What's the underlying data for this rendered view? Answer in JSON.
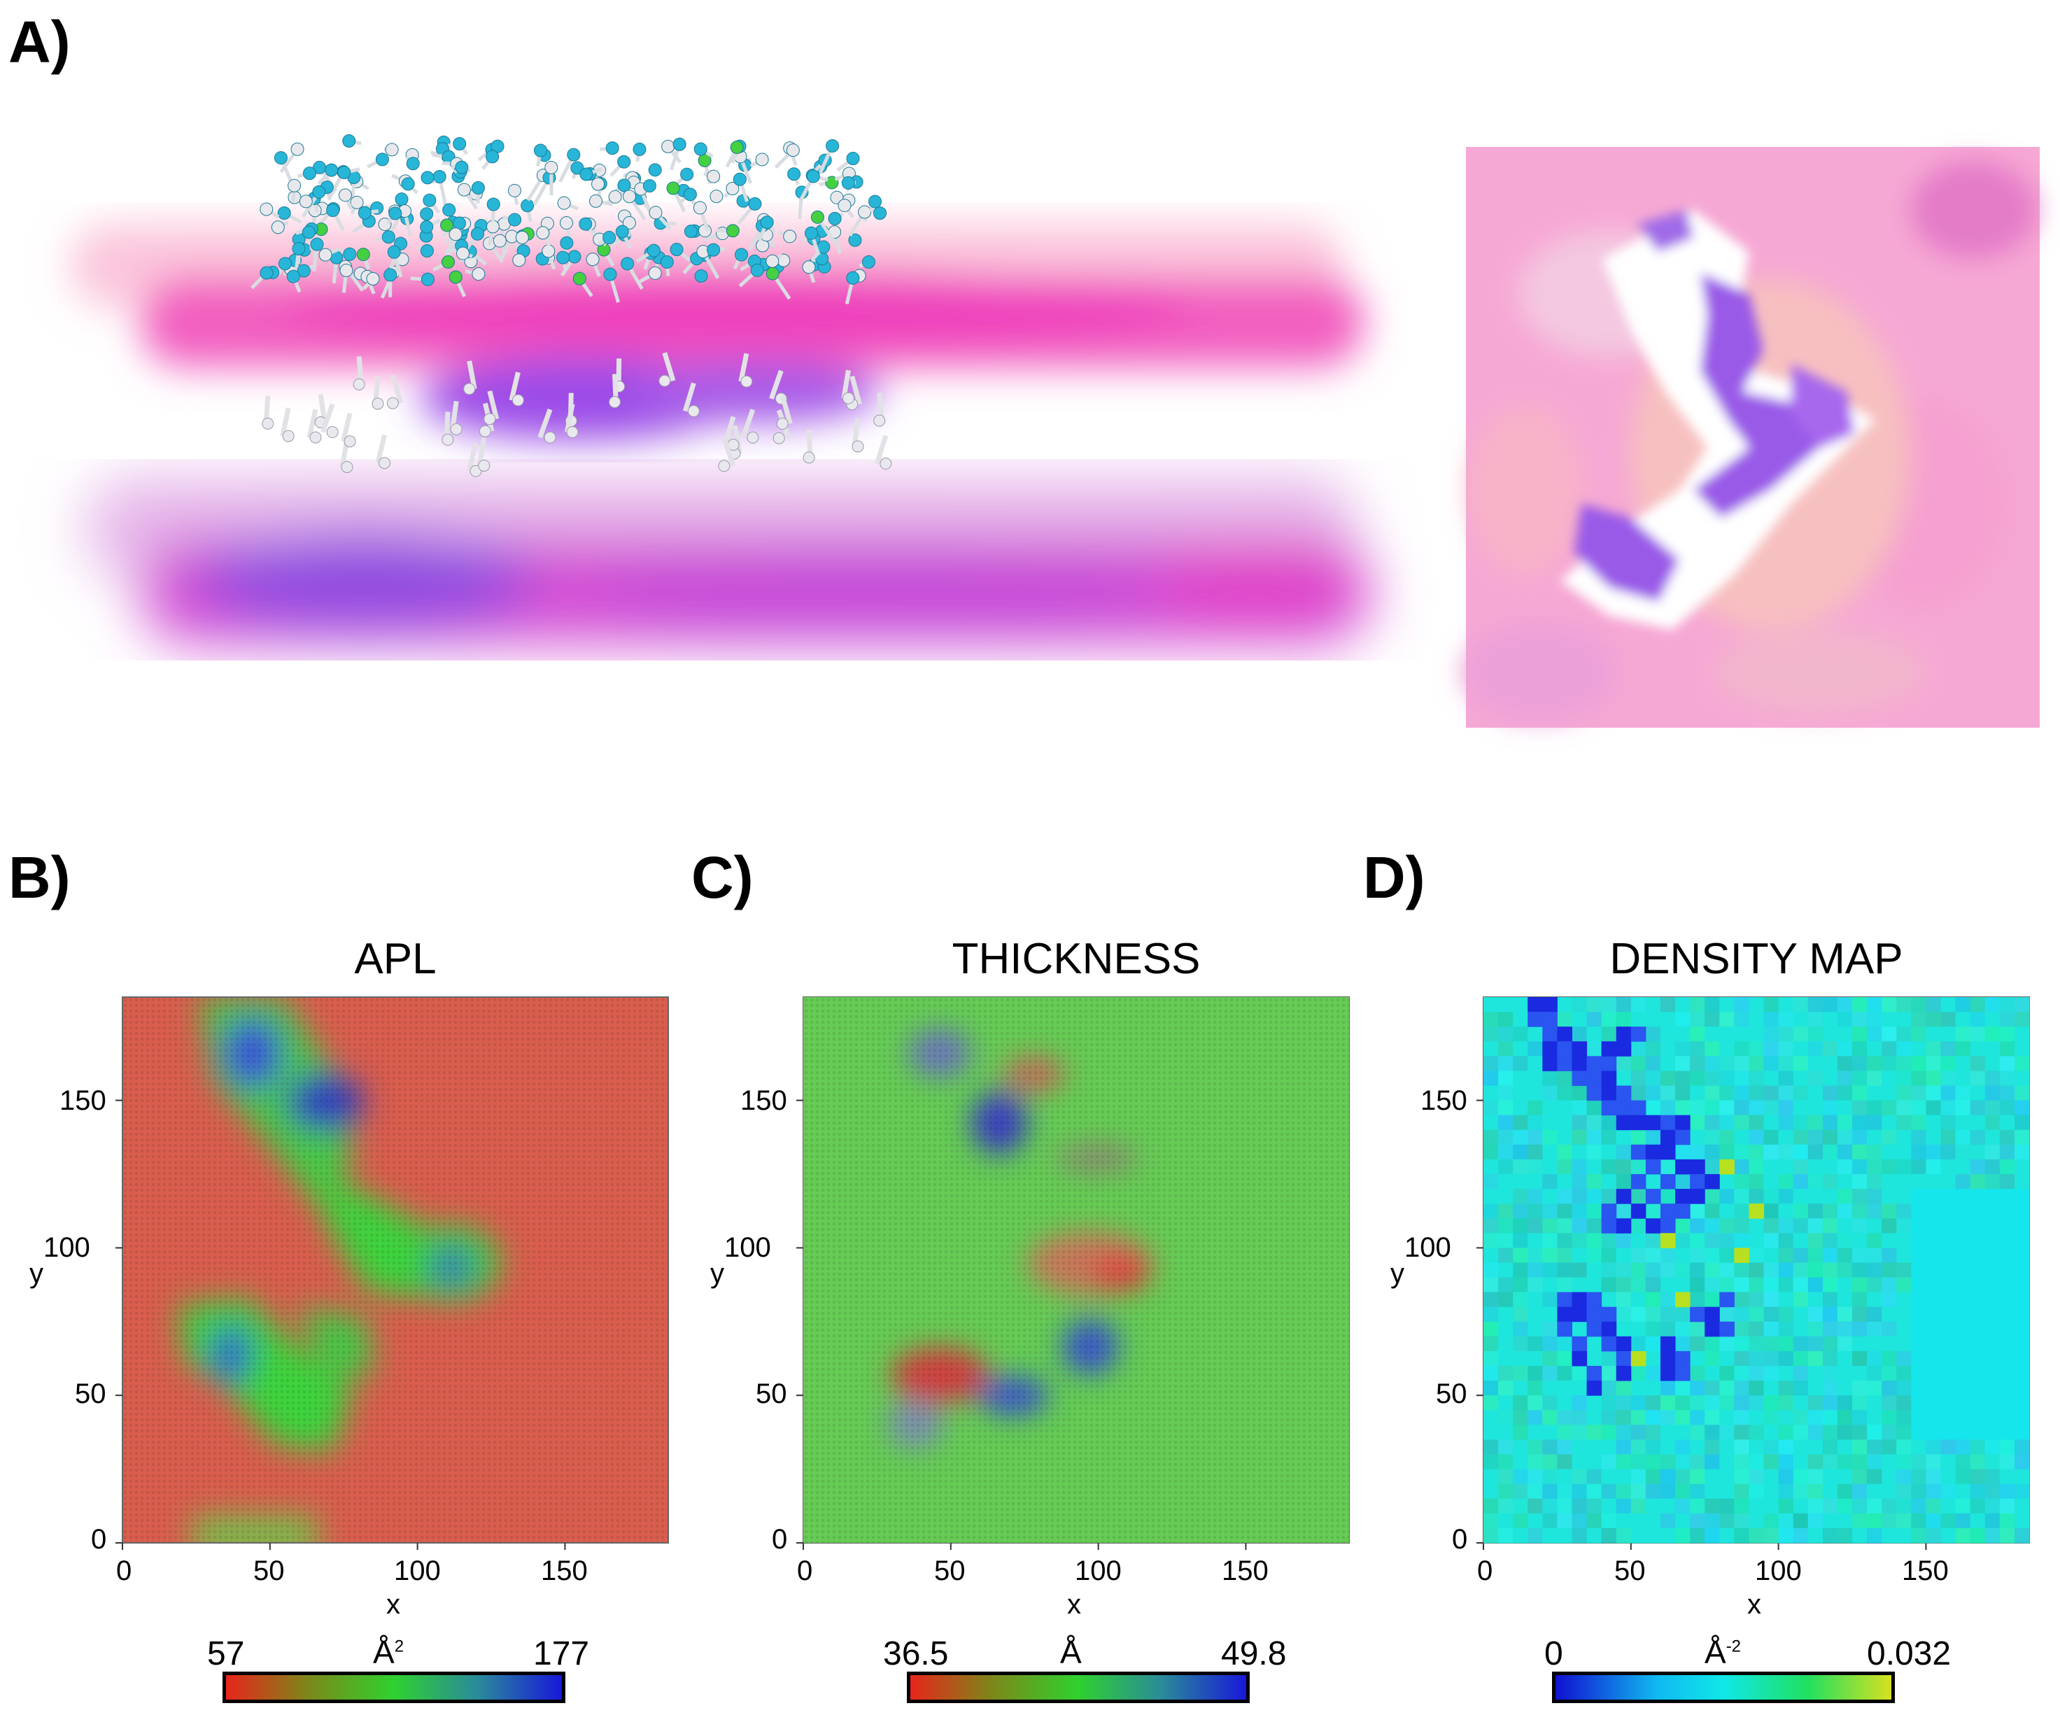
{
  "figure": {
    "panel_a": {
      "label": "A)"
    },
    "panel_b": {
      "label": "B)",
      "title": "APL",
      "xlabel": "x",
      "ylabel": "y",
      "x_ticks": [
        "0",
        "50",
        "100",
        "150"
      ],
      "y_ticks": [
        "0",
        "50",
        "100",
        "150"
      ],
      "colorbar": {
        "min": "57",
        "max": "177",
        "unit": "Å",
        "unit_exp": "2",
        "colors": [
          "#e8251b",
          "#2fd12f",
          "#1818d8"
        ]
      }
    },
    "panel_c": {
      "label": "C)",
      "title": "THICKNESS",
      "xlabel": "x",
      "ylabel": "y",
      "x_ticks": [
        "0",
        "50",
        "100",
        "150"
      ],
      "y_ticks": [
        "0",
        "50",
        "100",
        "150"
      ],
      "colorbar": {
        "min": "36.5",
        "max": "49.8",
        "unit": "Å",
        "unit_exp": "",
        "colors": [
          "#e8251b",
          "#2fd12f",
          "#1818d8"
        ]
      }
    },
    "panel_d": {
      "label": "D)",
      "title": "DENSITY MAP",
      "xlabel": "x",
      "ylabel": "y",
      "x_ticks": [
        "0",
        "50",
        "100",
        "150"
      ],
      "y_ticks": [
        "0",
        "50",
        "100",
        "150"
      ],
      "colorbar": {
        "min": "0",
        "max": "0.032",
        "unit": "Å",
        "unit_exp": "-2",
        "colors": [
          "#1010d0",
          "#10e0f0",
          "#20e060",
          "#d8e020"
        ]
      }
    }
  },
  "chart_data": [
    {
      "type": "heatmap",
      "title": "APL",
      "xlabel": "x",
      "ylabel": "y",
      "xlim": [
        0,
        185
      ],
      "ylim": [
        0,
        185
      ],
      "color_range": [
        57,
        177
      ],
      "unit": "Å2"
    },
    {
      "type": "heatmap",
      "title": "THICKNESS",
      "xlabel": "x",
      "ylabel": "y",
      "xlim": [
        0,
        185
      ],
      "ylim": [
        0,
        185
      ],
      "color_range": [
        36.5,
        49.8
      ],
      "unit": "Å"
    },
    {
      "type": "heatmap",
      "title": "DENSITY MAP",
      "xlabel": "x",
      "ylabel": "y",
      "xlim": [
        0,
        185
      ],
      "ylim": [
        0,
        185
      ],
      "color_range": [
        0,
        0.032
      ],
      "unit": "Å-2"
    }
  ]
}
